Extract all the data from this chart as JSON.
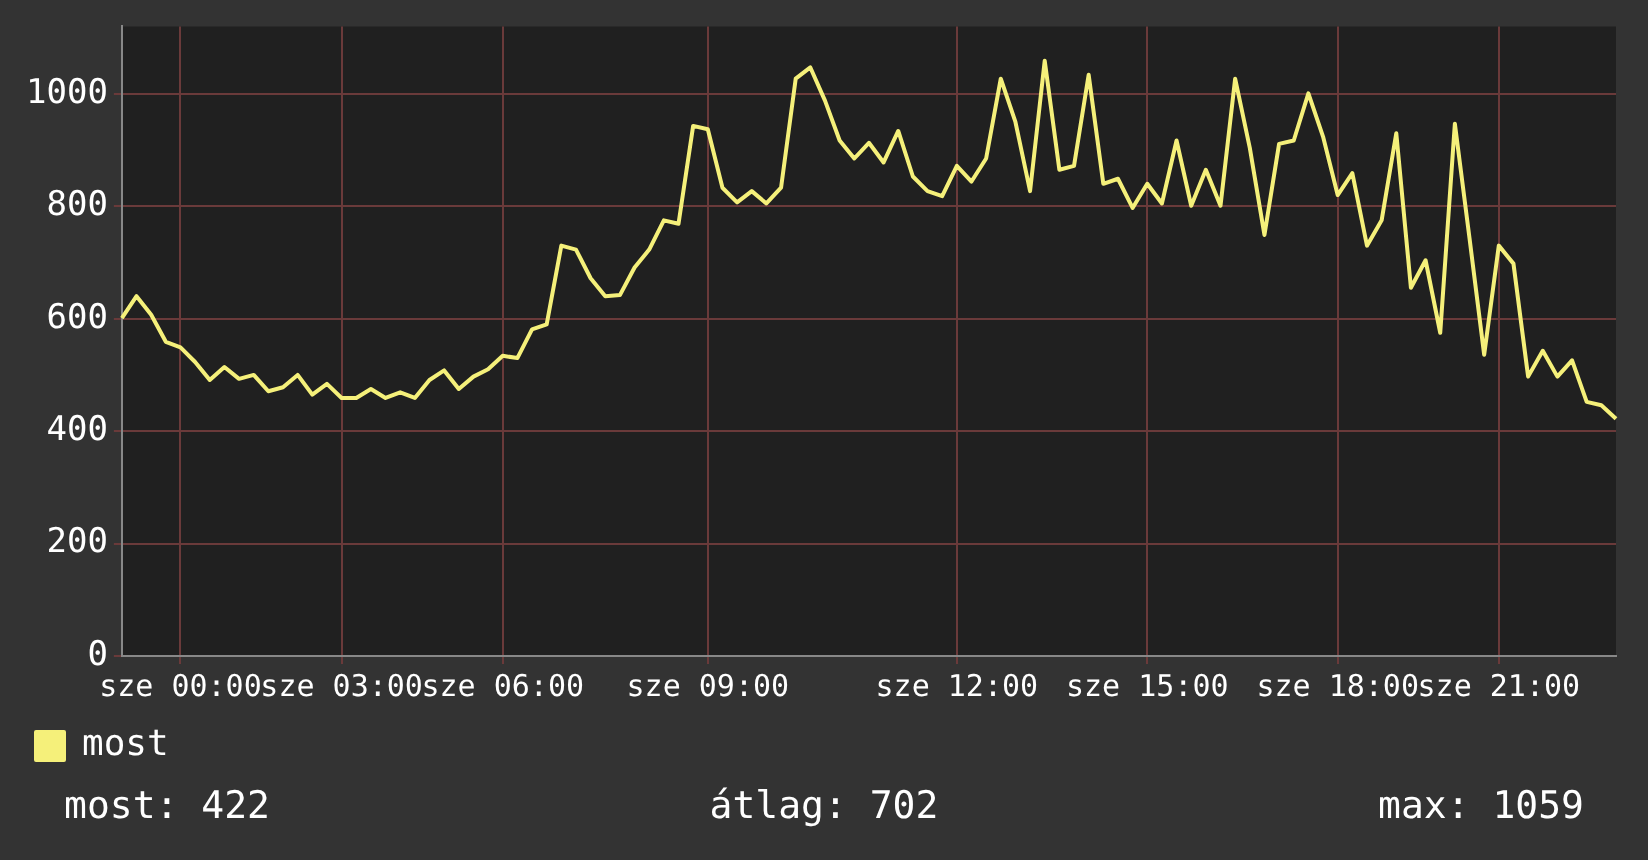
{
  "chart_data": {
    "type": "line",
    "categories": [
      null,
      null,
      null,
      null,
      "sze 00:00",
      null,
      null,
      null,
      null,
      null,
      null,
      null,
      null,
      null,
      null,
      "sze 03:00",
      null,
      null,
      null,
      null,
      null,
      null,
      null,
      null,
      null,
      null,
      "sze 06:00",
      null,
      null,
      null,
      null,
      null,
      null,
      null,
      null,
      null,
      null,
      null,
      null,
      null,
      "sze 09:00",
      null,
      null,
      null,
      null,
      null,
      null,
      null,
      null,
      null,
      null,
      null,
      null,
      null,
      null,
      null,
      null,
      "sze 12:00",
      null,
      null,
      null,
      null,
      null,
      null,
      null,
      null,
      null,
      null,
      null,
      null,
      "sze 15:00",
      null,
      null,
      null,
      null,
      null,
      null,
      null,
      null,
      null,
      null,
      null,
      null,
      "sze 18:00",
      null,
      null,
      null,
      null,
      null,
      null,
      null,
      null,
      null,
      null,
      "sze 21:00",
      null,
      null,
      null,
      null,
      null,
      null,
      null,
      null
    ],
    "series": [
      {
        "name": "most",
        "color": "#f5f07a",
        "values": [
          601,
          640,
          607,
          559,
          549,
          523,
          491,
          514,
          493,
          500,
          471,
          478,
          500,
          465,
          484,
          459,
          459,
          475,
          459,
          469,
          459,
          491,
          508,
          475,
          497,
          510,
          534,
          530,
          581,
          590,
          730,
          723,
          672,
          640,
          642,
          691,
          723,
          775,
          769,
          943,
          937,
          833,
          807,
          827,
          805,
          833,
          1027,
          1047,
          988,
          917,
          885,
          913,
          878,
          934,
          853,
          827,
          818,
          872,
          844,
          885,
          1027,
          950,
          827,
          1059,
          865,
          872,
          1034,
          840,
          849,
          797,
          840,
          805,
          917,
          801,
          865,
          801,
          1027,
          904,
          749,
          911,
          917,
          1001,
          924,
          820,
          859,
          730,
          775,
          930,
          655,
          704,
          575,
          947,
          743,
          536,
          730,
          698,
          497,
          543,
          497,
          526,
          452,
          446,
          422
        ]
      }
    ],
    "ylim": [
      0,
      1120
    ],
    "yticks": [
      0,
      200,
      400,
      600,
      800,
      1000
    ],
    "grid": true,
    "legend": "bottom left",
    "marker": "none",
    "line_style": "solid",
    "annotations": [
      "most: 422",
      "átlag: 702",
      "max: 1059"
    ]
  }
}
